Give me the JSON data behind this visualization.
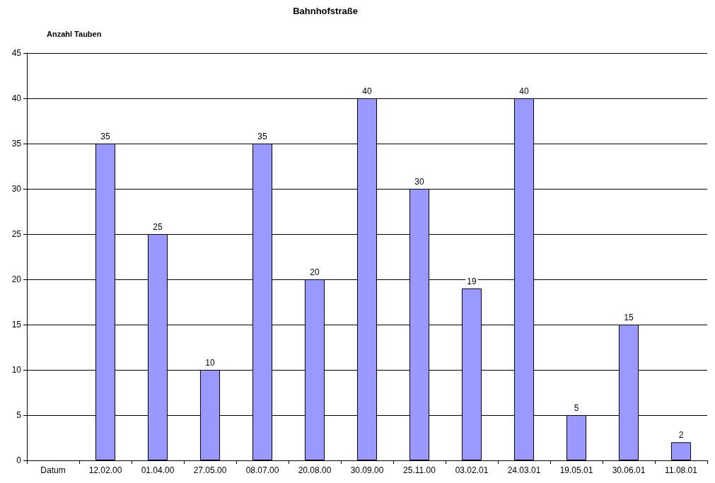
{
  "chart_data": {
    "type": "bar",
    "title": "Bahnhofstraße",
    "ylabel": "Anzahl Tauben",
    "categories": [
      "Datum",
      "12.02.00",
      "01.04.00",
      "27.05.00",
      "08.07.00",
      "20.08.00",
      "30.09.00",
      "25.11.00",
      "03.02.01",
      "24.03.01",
      "19.05.01",
      "30.06.01",
      "11.08.01"
    ],
    "values": [
      null,
      35,
      25,
      10,
      35,
      20,
      40,
      30,
      19,
      40,
      5,
      15,
      2
    ],
    "color": "#9999ff",
    "ylim": [
      0,
      45
    ],
    "yticks": [
      0,
      5,
      10,
      15,
      20,
      25,
      30,
      35,
      40,
      45
    ],
    "grid": "y",
    "data_labels": true
  }
}
